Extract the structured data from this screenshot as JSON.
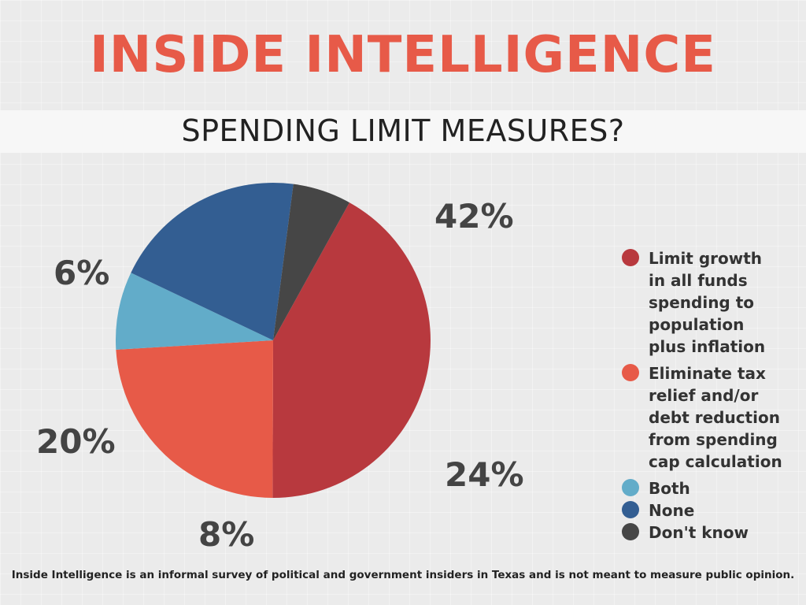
{
  "header": {
    "title": "INSIDE INTELLIGENCE",
    "subtitle": "SPENDING LIMIT MEASURES?"
  },
  "chart_data": {
    "type": "pie",
    "start_angle_deg": -61,
    "direction": "clockwise",
    "legend_position": "right",
    "slices": [
      {
        "label": "Limit growth in all funds spending to population plus inflation",
        "value": 42,
        "display": "42%",
        "color": "#b8393e"
      },
      {
        "label": "Eliminate tax relief and/or debt reduction from spending cap calculation",
        "value": 24,
        "display": "24%",
        "color": "#e75a48"
      },
      {
        "label": "Both",
        "value": 8,
        "display": "8%",
        "color": "#62acc9"
      },
      {
        "label": "None",
        "value": 20,
        "display": "20%",
        "color": "#335e92"
      },
      {
        "label": "Don't know",
        "value": 6,
        "display": "6%",
        "color": "#464646"
      }
    ]
  },
  "footnote": "Inside Intelligence is an informal survey of political and government insiders in Texas and is not meant to measure public opinion."
}
